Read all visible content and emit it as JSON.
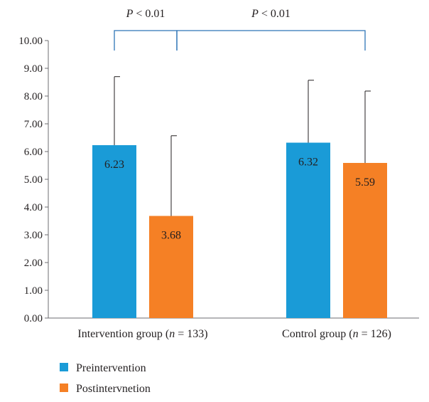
{
  "chart_data": {
    "type": "bar",
    "title": "",
    "xlabel": "",
    "ylabel": "",
    "ylim": [
      0,
      10
    ],
    "yticks": [
      "0.00",
      "1.00",
      "2.00",
      "3.00",
      "4.00",
      "5.00",
      "6.00",
      "7.00",
      "8.00",
      "9.00",
      "10.00"
    ],
    "categories": [
      {
        "prefix": "Intervention group (",
        "n_symbol": "n",
        "suffix": " = 133)"
      },
      {
        "prefix": "Control group (",
        "n_symbol": "n",
        "suffix": " = 126)"
      }
    ],
    "series": [
      {
        "name": "Preintervention",
        "color": "#1a9bd7",
        "values": [
          6.23,
          6.32
        ],
        "labels": [
          "6.23",
          "6.32"
        ],
        "error_upper": [
          8.7,
          8.57
        ]
      },
      {
        "name": "Postintervnetion",
        "color": "#f58025",
        "values": [
          3.68,
          5.59
        ],
        "labels": [
          "3.68",
          "5.59"
        ],
        "error_upper": [
          6.57,
          8.18
        ]
      }
    ],
    "annotations": [
      {
        "p_symbol": "P",
        "text": " < 0.01",
        "from": {
          "category": 0,
          "series": 0
        },
        "to": {
          "category": 0,
          "series": 1
        }
      },
      {
        "p_symbol": "P",
        "text": " < 0.01",
        "from": {
          "category": 0,
          "series": 1
        },
        "to": {
          "category": 1,
          "series": 1
        }
      }
    ],
    "legend": "bottom-left",
    "grid": false,
    "axis_color": "#6d6e71",
    "bracket_color": "#2e75b6"
  }
}
